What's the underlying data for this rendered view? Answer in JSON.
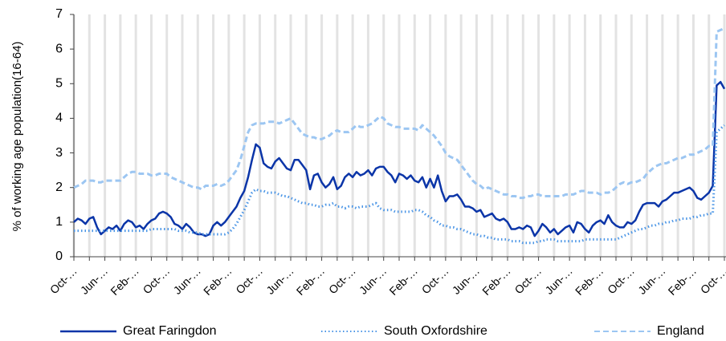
{
  "chart_data": {
    "type": "line",
    "y_label": "% of working age population(16-64)",
    "categories": [
      "Oct-…",
      null,
      null,
      null,
      null,
      null,
      null,
      null,
      "Jun-…",
      null,
      null,
      null,
      null,
      null,
      null,
      null,
      "Feb-…",
      null,
      null,
      null,
      null,
      null,
      null,
      null,
      "Oct-…",
      null,
      null,
      null,
      null,
      null,
      null,
      null,
      "Jun-…",
      null,
      null,
      null,
      null,
      null,
      null,
      null,
      "Feb-…",
      null,
      null,
      null,
      null,
      null,
      null,
      null,
      "Oct-…",
      null,
      null,
      null,
      null,
      null,
      null,
      null,
      "Jun-…",
      null,
      null,
      null,
      null,
      null,
      null,
      null,
      "Feb-…",
      null,
      null,
      null,
      null,
      null,
      null,
      null,
      "Oct-…",
      null,
      null,
      null,
      null,
      null,
      null,
      null,
      "Jun-…",
      null,
      null,
      null,
      null,
      null,
      null,
      null,
      "Feb-…",
      null,
      null,
      null,
      null,
      null,
      null,
      null,
      "Oct-…",
      null,
      null,
      null,
      null,
      null,
      null,
      null,
      "Jun-…",
      null,
      null,
      null,
      null,
      null,
      null,
      null,
      "Feb-…",
      null,
      null,
      null,
      null,
      null,
      null,
      null,
      "Oct-…",
      null,
      null,
      null,
      null,
      null,
      null,
      null,
      "Jun-…",
      null,
      null,
      null,
      null,
      null,
      null,
      null,
      "Feb-…",
      null,
      null,
      null,
      null,
      null,
      null,
      null,
      "Oct-…",
      null,
      null,
      null,
      null,
      null,
      null,
      null,
      "Jun-…",
      null,
      null,
      null,
      null,
      null,
      null,
      null,
      "Feb-…",
      null,
      null,
      null,
      null,
      null,
      null,
      null,
      "Oct-…"
    ],
    "series": [
      {
        "name": "Great Faringdon",
        "color": "#0b35a8",
        "style": "solid",
        "values": [
          1.0,
          1.1,
          1.05,
          0.95,
          1.1,
          1.15,
          0.85,
          0.65,
          0.75,
          0.85,
          0.8,
          0.9,
          0.75,
          0.95,
          1.05,
          1.0,
          0.85,
          0.9,
          0.8,
          0.95,
          1.05,
          1.1,
          1.25,
          1.3,
          1.25,
          1.15,
          0.95,
          0.9,
          0.8,
          0.95,
          0.85,
          0.7,
          0.65,
          0.65,
          0.6,
          0.65,
          0.9,
          1.0,
          0.9,
          1.0,
          1.15,
          1.3,
          1.45,
          1.7,
          1.9,
          2.3,
          2.8,
          3.25,
          3.15,
          2.7,
          2.6,
          2.55,
          2.75,
          2.85,
          2.7,
          2.55,
          2.5,
          2.8,
          2.8,
          2.65,
          2.5,
          1.95,
          2.35,
          2.4,
          2.15,
          2.0,
          2.1,
          2.3,
          1.95,
          2.05,
          2.3,
          2.4,
          2.3,
          2.45,
          2.35,
          2.4,
          2.5,
          2.35,
          2.55,
          2.6,
          2.6,
          2.45,
          2.35,
          2.15,
          2.4,
          2.35,
          2.25,
          2.35,
          2.2,
          2.15,
          2.3,
          2.0,
          2.25,
          2.0,
          2.35,
          1.9,
          1.6,
          1.75,
          1.75,
          1.8,
          1.65,
          1.45,
          1.45,
          1.4,
          1.3,
          1.35,
          1.15,
          1.2,
          1.25,
          1.1,
          1.05,
          1.1,
          1.0,
          0.8,
          0.8,
          0.85,
          0.8,
          0.9,
          0.85,
          0.6,
          0.75,
          0.95,
          0.85,
          0.7,
          0.8,
          0.65,
          0.75,
          0.85,
          0.9,
          0.7,
          1.0,
          0.95,
          0.8,
          0.7,
          0.9,
          1.0,
          1.05,
          0.95,
          1.2,
          1.0,
          0.9,
          0.85,
          0.85,
          1.0,
          0.95,
          1.05,
          1.3,
          1.5,
          1.55,
          1.55,
          1.55,
          1.45,
          1.6,
          1.65,
          1.75,
          1.85,
          1.85,
          1.9,
          1.95,
          2.0,
          1.9,
          1.7,
          1.65,
          1.75,
          1.85,
          2.05,
          4.95,
          5.05,
          4.85
        ]
      },
      {
        "name": "South Oxfordshire",
        "color": "#4a95e6",
        "style": "dotted",
        "values": [
          0.75,
          0.75,
          0.75,
          0.75,
          0.75,
          0.75,
          0.75,
          0.75,
          0.75,
          0.75,
          0.75,
          0.75,
          0.75,
          0.75,
          0.75,
          0.75,
          0.75,
          0.75,
          0.75,
          0.75,
          0.8,
          0.8,
          0.8,
          0.8,
          0.8,
          0.8,
          0.8,
          0.75,
          0.75,
          0.75,
          0.7,
          0.7,
          0.7,
          0.65,
          0.65,
          0.65,
          0.65,
          0.65,
          0.65,
          0.65,
          0.7,
          0.8,
          0.95,
          1.15,
          1.35,
          1.6,
          1.85,
          1.95,
          1.9,
          1.9,
          1.85,
          1.85,
          1.85,
          1.8,
          1.75,
          1.75,
          1.7,
          1.65,
          1.6,
          1.55,
          1.55,
          1.5,
          1.5,
          1.45,
          1.45,
          1.5,
          1.5,
          1.55,
          1.45,
          1.45,
          1.4,
          1.45,
          1.45,
          1.4,
          1.45,
          1.45,
          1.45,
          1.5,
          1.55,
          1.4,
          1.35,
          1.35,
          1.35,
          1.3,
          1.3,
          1.3,
          1.3,
          1.3,
          1.35,
          1.35,
          1.3,
          1.2,
          1.15,
          1.05,
          1.0,
          0.9,
          0.9,
          0.85,
          0.85,
          0.8,
          0.8,
          0.75,
          0.7,
          0.65,
          0.65,
          0.6,
          0.6,
          0.55,
          0.55,
          0.5,
          0.5,
          0.5,
          0.5,
          0.45,
          0.45,
          0.45,
          0.4,
          0.4,
          0.4,
          0.4,
          0.45,
          0.45,
          0.5,
          0.5,
          0.5,
          0.45,
          0.45,
          0.45,
          0.45,
          0.45,
          0.45,
          0.45,
          0.5,
          0.5,
          0.5,
          0.5,
          0.5,
          0.5,
          0.5,
          0.5,
          0.5,
          0.55,
          0.6,
          0.65,
          0.7,
          0.75,
          0.8,
          0.8,
          0.85,
          0.9,
          0.9,
          0.95,
          0.95,
          1.0,
          1.0,
          1.05,
          1.05,
          1.1,
          1.1,
          1.1,
          1.15,
          1.15,
          1.2,
          1.2,
          1.25,
          1.25,
          3.6,
          3.7,
          3.8
        ]
      },
      {
        "name": "England",
        "color": "#9cc6f2",
        "style": "dashed",
        "values": [
          2.0,
          2.05,
          2.1,
          2.2,
          2.2,
          2.2,
          2.15,
          2.15,
          2.2,
          2.2,
          2.2,
          2.2,
          2.2,
          2.3,
          2.4,
          2.45,
          2.45,
          2.4,
          2.4,
          2.4,
          2.35,
          2.35,
          2.4,
          2.4,
          2.4,
          2.3,
          2.25,
          2.2,
          2.15,
          2.1,
          2.05,
          2.0,
          2.0,
          1.95,
          2.05,
          2.05,
          2.05,
          2.1,
          2.05,
          2.1,
          2.2,
          2.35,
          2.5,
          2.8,
          3.2,
          3.6,
          3.8,
          3.85,
          3.85,
          3.85,
          3.9,
          3.9,
          3.9,
          3.85,
          3.9,
          3.95,
          4.0,
          3.85,
          3.7,
          3.55,
          3.5,
          3.45,
          3.45,
          3.4,
          3.4,
          3.45,
          3.5,
          3.6,
          3.65,
          3.6,
          3.6,
          3.6,
          3.7,
          3.8,
          3.75,
          3.75,
          3.8,
          3.85,
          3.95,
          4.05,
          4.0,
          3.85,
          3.8,
          3.75,
          3.75,
          3.7,
          3.7,
          3.7,
          3.7,
          3.65,
          3.8,
          3.7,
          3.6,
          3.5,
          3.35,
          3.2,
          3.0,
          2.9,
          2.85,
          2.8,
          2.65,
          2.5,
          2.35,
          2.2,
          2.1,
          2.05,
          1.95,
          2.0,
          1.95,
          1.9,
          1.85,
          1.8,
          1.8,
          1.75,
          1.75,
          1.7,
          1.7,
          1.75,
          1.75,
          1.8,
          1.8,
          1.75,
          1.75,
          1.75,
          1.75,
          1.75,
          1.75,
          1.8,
          1.8,
          1.8,
          1.85,
          1.9,
          1.9,
          1.85,
          1.85,
          1.85,
          1.8,
          1.85,
          1.85,
          1.9,
          2.0,
          2.1,
          2.15,
          2.1,
          2.15,
          2.15,
          2.2,
          2.25,
          2.4,
          2.5,
          2.6,
          2.65,
          2.7,
          2.7,
          2.75,
          2.8,
          2.85,
          2.85,
          2.9,
          2.95,
          2.95,
          3.0,
          3.05,
          3.1,
          3.2,
          3.2,
          6.5,
          6.55,
          6.6
        ]
      }
    ],
    "ylim": [
      0,
      7
    ],
    "yticks": [
      0,
      1,
      2,
      3,
      4,
      5,
      6,
      7
    ],
    "grid": true
  }
}
